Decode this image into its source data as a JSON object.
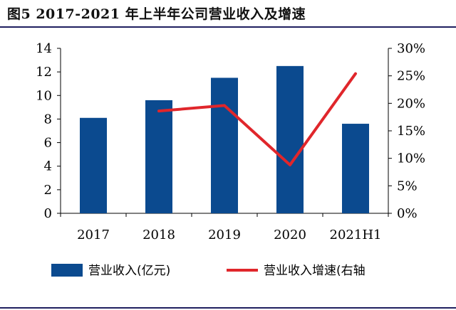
{
  "figure": {
    "title": "图5  2017-2021 年上半年公司营业收入及增速"
  },
  "chart_data": {
    "type": "bar",
    "categories": [
      "2017",
      "2018",
      "2019",
      "2020",
      "2021H1"
    ],
    "series": [
      {
        "name": "营业收入(亿元)",
        "type": "bar",
        "axis": "left",
        "color": "#0b4a8f",
        "values": [
          8.1,
          9.6,
          11.5,
          12.5,
          7.6
        ]
      },
      {
        "name": "营业收入增速(右轴",
        "type": "line",
        "axis": "right",
        "color": "#e0262b",
        "values": [
          null,
          18.6,
          19.6,
          8.8,
          25.4
        ]
      }
    ],
    "y_left": {
      "min": 0,
      "max": 14,
      "ticks": [
        0,
        2,
        4,
        6,
        8,
        10,
        12,
        14
      ]
    },
    "y_right": {
      "min": 0,
      "max": 30,
      "ticks": [
        "0%",
        "5%",
        "10%",
        "15%",
        "20%",
        "25%",
        "30%"
      ]
    },
    "grid": false,
    "legend_position": "bottom"
  }
}
